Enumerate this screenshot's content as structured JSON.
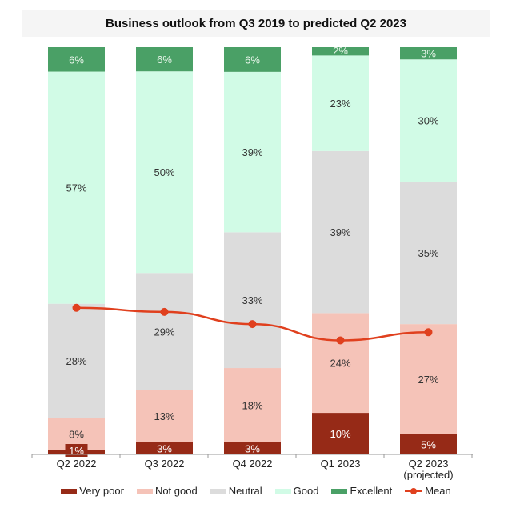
{
  "chart_data": {
    "type": "bar",
    "stacked": true,
    "title": "Business outlook from Q3 2019 to predicted Q2 2023",
    "xlabel": "",
    "ylabel": "",
    "ylim": [
      0,
      100
    ],
    "grid": false,
    "legend_position": "bottom",
    "categories": [
      "Q2 2022",
      "Q3 2022",
      "Q4 2022",
      "Q1 2023",
      "Q2 2023"
    ],
    "category_sublabels": [
      "",
      "",
      "",
      "",
      "(projected)"
    ],
    "series": [
      {
        "name": "Very poor",
        "color": "#962a17",
        "label_color": "#ffffff",
        "values": [
          1,
          3,
          3,
          10,
          5
        ]
      },
      {
        "name": "Not good",
        "color": "#f5c3b8",
        "label_color": "#333333",
        "values": [
          8,
          13,
          18,
          24,
          27
        ]
      },
      {
        "name": "Neutral",
        "color": "#dcdcdc",
        "label_color": "#333333",
        "values": [
          28,
          29,
          33,
          39,
          35
        ]
      },
      {
        "name": "Good",
        "color": "#d1fbe6",
        "label_color": "#333333",
        "values": [
          57,
          50,
          39,
          23,
          30
        ]
      },
      {
        "name": "Excellent",
        "color": "#4aa066",
        "label_color": "#e8f5ea",
        "values": [
          6,
          6,
          6,
          2,
          3
        ]
      }
    ],
    "line_series": {
      "name": "Mean",
      "color": "#e0401e",
      "values_pct_of_stack": [
        36,
        35,
        32,
        28,
        30
      ]
    },
    "value_suffix": "%"
  }
}
